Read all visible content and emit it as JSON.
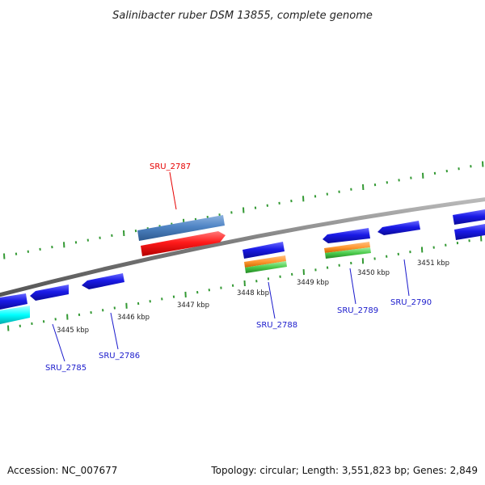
{
  "title": "Salinibacter ruber DSM 13855, complete genome",
  "footer": {
    "accession": "Accession: NC_007677",
    "summary": "Topology: circular; Length: 3,551,823 bp; Genes: 2,849"
  },
  "colors": {
    "cds": "#1a1ae6",
    "highlight": "#ff1a1a",
    "steelblue": "#4f84c4",
    "orange": "#ff9933",
    "green": "#4dcc4d",
    "cyan": "#00ffff",
    "backbone": "#888888",
    "ticks": "#339933",
    "label_blue": "#1a1acc",
    "label_red": "#e60000"
  },
  "kbp_ticks": [
    "3445 kbp",
    "3446 kbp",
    "3447 kbp",
    "3448 kbp",
    "3449 kbp",
    "3450 kbp",
    "3451 kbp"
  ],
  "gene_labels": [
    {
      "id": "SRU_2785",
      "color": "blue"
    },
    {
      "id": "SRU_2786",
      "color": "blue"
    },
    {
      "id": "SRU_2787",
      "color": "red"
    },
    {
      "id": "SRU_2788",
      "color": "blue"
    },
    {
      "id": "SRU_2789",
      "color": "blue"
    },
    {
      "id": "SRU_2790",
      "color": "blue"
    }
  ]
}
